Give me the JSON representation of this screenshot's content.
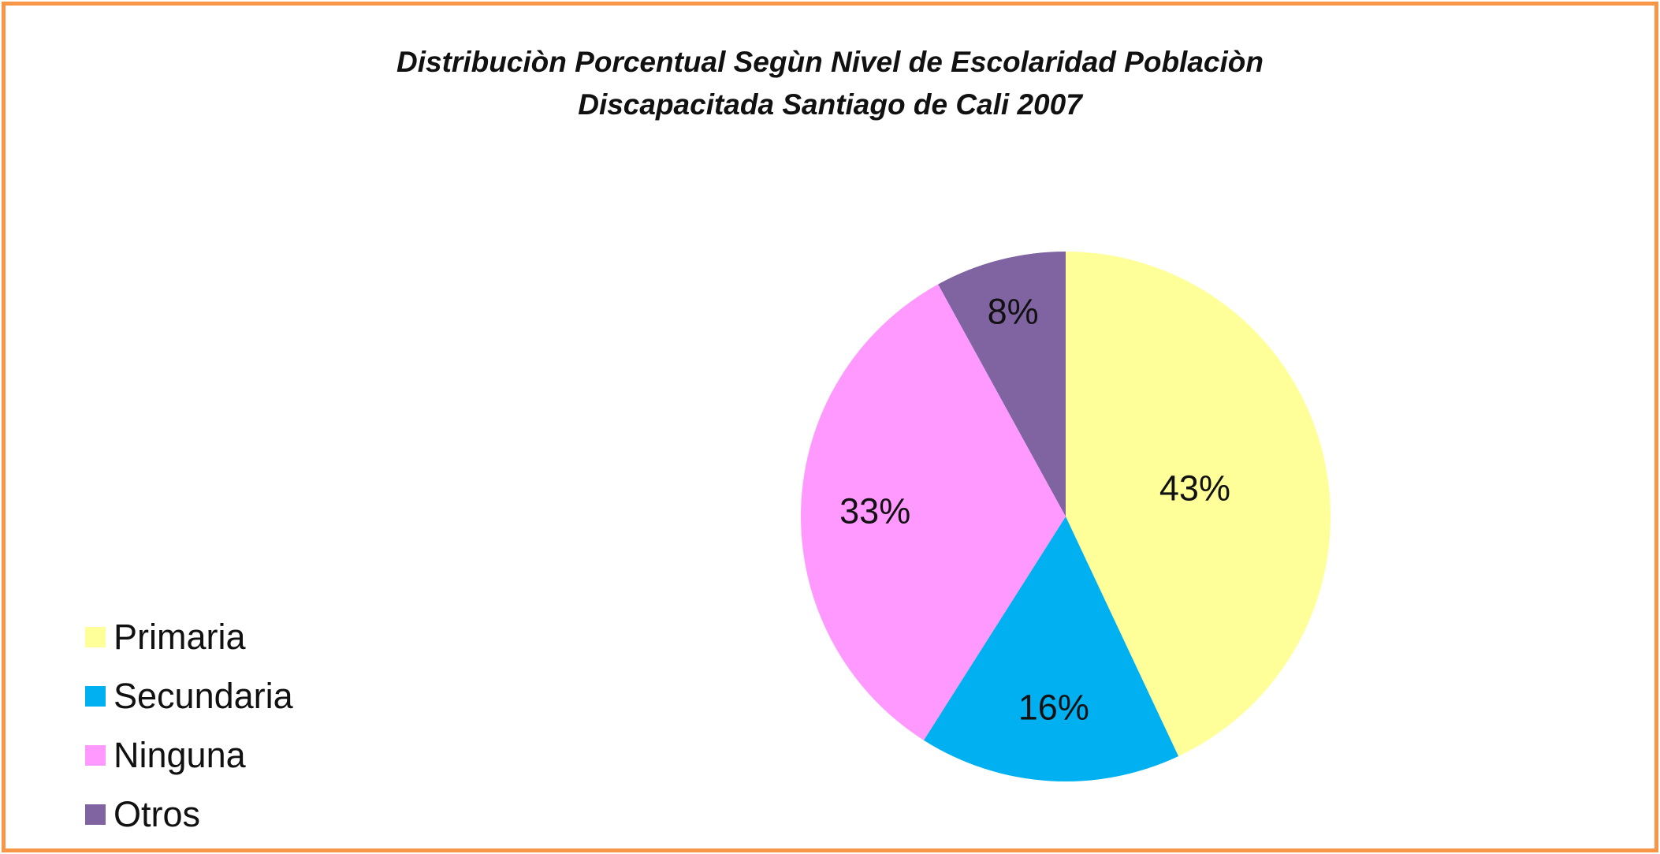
{
  "chart_data": {
    "type": "pie",
    "title_line1": "Distribuciòn Porcentual Segùn Nivel de Escolaridad Poblaciòn",
    "title_line2": "Discapacitada Santiago de Cali 2007",
    "categories": [
      "Primaria",
      "Secundaria",
      "Ninguna",
      "Otros"
    ],
    "values": [
      43,
      16,
      33,
      8
    ],
    "data_labels": [
      "43%",
      "16%",
      "33%",
      "8%"
    ],
    "colors": [
      "#FFFF99",
      "#00B0F0",
      "#FF99FF",
      "#8064A2"
    ],
    "legend_position": "bottom-left",
    "start_angle": "12 o'clock, clockwise"
  },
  "frame_color": "#F79646"
}
